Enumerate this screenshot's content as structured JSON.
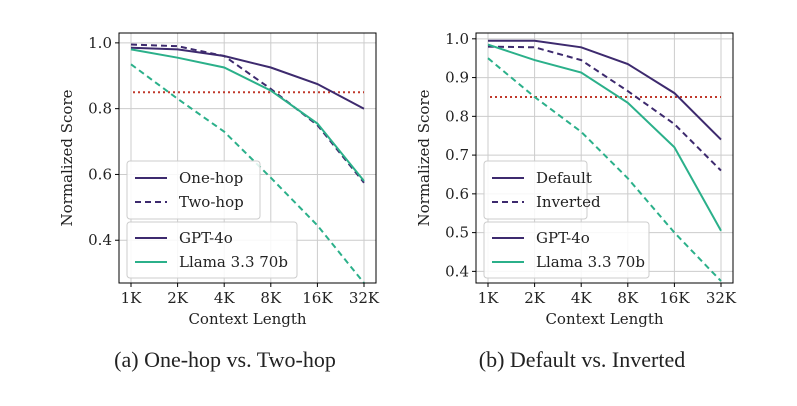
{
  "colors": {
    "gpt4o": "#3d2a6e",
    "llama": "#2bb08a",
    "threshold": "#c0392b",
    "grid": "#cccccc"
  },
  "chart_data": [
    {
      "type": "line",
      "caption": "(a) One-hop vs. Two-hop",
      "xlabel": "Context Length",
      "ylabel": "Normalized Score",
      "categories": [
        "1K",
        "2K",
        "4K",
        "8K",
        "16K",
        "32K"
      ],
      "ylim": [
        0.27,
        1.03
      ],
      "yticks": [
        0.4,
        0.6,
        0.8,
        1.0
      ],
      "ytick_labels": [
        "0.4",
        "0.6",
        "0.8",
        "1.0"
      ],
      "grid": true,
      "threshold": 0.85,
      "series": [
        {
          "model": "GPT-4o",
          "variant": "One-hop",
          "color_key": "gpt4o",
          "dash": false,
          "values": [
            0.985,
            0.98,
            0.96,
            0.925,
            0.875,
            0.8
          ]
        },
        {
          "model": "GPT-4o",
          "variant": "Two-hop",
          "color_key": "gpt4o",
          "dash": true,
          "values": [
            0.995,
            0.99,
            0.96,
            0.86,
            0.75,
            0.575
          ]
        },
        {
          "model": "Llama 3.3 70b",
          "variant": "One-hop",
          "color_key": "llama",
          "dash": false,
          "values": [
            0.98,
            0.955,
            0.925,
            0.855,
            0.755,
            0.58
          ]
        },
        {
          "model": "Llama 3.3 70b",
          "variant": "Two-hop",
          "color_key": "llama",
          "dash": true,
          "values": [
            0.935,
            0.83,
            0.73,
            0.59,
            0.445,
            0.27
          ]
        }
      ],
      "legend_style": {
        "position": "lower-left",
        "entries": [
          "One-hop",
          "Two-hop"
        ]
      },
      "legend_model": {
        "position": "lower-left",
        "entries": [
          "GPT-4o",
          "Llama 3.3 70b"
        ]
      }
    },
    {
      "type": "line",
      "caption": "(b) Default vs. Inverted",
      "xlabel": "Context Length",
      "ylabel": "Normalized Score",
      "categories": [
        "1K",
        "2K",
        "4K",
        "8K",
        "16K",
        "32K"
      ],
      "ylim": [
        0.37,
        1.015
      ],
      "yticks": [
        0.4,
        0.5,
        0.6,
        0.7,
        0.8,
        0.9,
        1.0
      ],
      "ytick_labels": [
        "0.4",
        "0.5",
        "0.6",
        "0.7",
        "0.8",
        "0.9",
        "1.0"
      ],
      "grid": true,
      "threshold": 0.85,
      "series": [
        {
          "model": "GPT-4o",
          "variant": "Default",
          "color_key": "gpt4o",
          "dash": false,
          "values": [
            0.995,
            0.995,
            0.978,
            0.935,
            0.86,
            0.74
          ]
        },
        {
          "model": "GPT-4o",
          "variant": "Inverted",
          "color_key": "gpt4o",
          "dash": true,
          "values": [
            0.98,
            0.978,
            0.945,
            0.865,
            0.78,
            0.66
          ]
        },
        {
          "model": "Llama 3.3 70b",
          "variant": "Default",
          "color_key": "llama",
          "dash": false,
          "values": [
            0.985,
            0.945,
            0.913,
            0.835,
            0.72,
            0.505
          ]
        },
        {
          "model": "Llama 3.3 70b",
          "variant": "Inverted",
          "color_key": "llama",
          "dash": true,
          "values": [
            0.95,
            0.85,
            0.76,
            0.64,
            0.5,
            0.375
          ]
        }
      ],
      "legend_style": {
        "position": "lower-left",
        "entries": [
          "Default",
          "Inverted"
        ]
      },
      "legend_model": {
        "position": "lower-left",
        "entries": [
          "GPT-4o",
          "Llama 3.3 70b"
        ]
      }
    }
  ]
}
